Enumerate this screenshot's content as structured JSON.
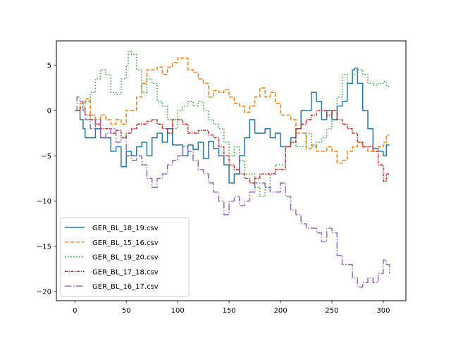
{
  "chart_data": {
    "type": "line",
    "title": "",
    "xlabel": "",
    "ylabel": "",
    "xlim": [
      -18,
      322
    ],
    "ylim": [
      -21,
      7.7
    ],
    "xticks": [
      0,
      50,
      100,
      150,
      200,
      250,
      300
    ],
    "yticks": [
      -20,
      -15,
      -10,
      -5,
      0,
      5
    ],
    "xtick_labels": [
      "0",
      "50",
      "100",
      "150",
      "200",
      "250",
      "300"
    ],
    "ytick_labels": [
      "−20",
      "−15",
      "−10",
      "−5",
      "0",
      "5"
    ],
    "grid": false,
    "legend_position": "lower-left",
    "series": [
      {
        "name": "GER_BL_18_19.csv",
        "color": "#1f77b4",
        "dash": "solid",
        "points": [
          [
            0,
            0
          ],
          [
            5,
            -1
          ],
          [
            8,
            -2
          ],
          [
            10,
            -3
          ],
          [
            15,
            -3
          ],
          [
            20,
            -2
          ],
          [
            25,
            -3
          ],
          [
            30,
            -3
          ],
          [
            35,
            -4.5
          ],
          [
            40,
            -4
          ],
          [
            45,
            -6.2
          ],
          [
            50,
            -4.5
          ],
          [
            55,
            -5
          ],
          [
            60,
            -4
          ],
          [
            65,
            -3.5
          ],
          [
            70,
            -5
          ],
          [
            75,
            -3
          ],
          [
            80,
            -2.5
          ],
          [
            85,
            -3.5
          ],
          [
            90,
            -2
          ],
          [
            95,
            -3.8
          ],
          [
            100,
            -3.8
          ],
          [
            105,
            -5
          ],
          [
            110,
            -3.8
          ],
          [
            115,
            -4.3
          ],
          [
            120,
            -3.5
          ],
          [
            125,
            -5.3
          ],
          [
            130,
            -3.4
          ],
          [
            135,
            -4.2
          ],
          [
            140,
            -5
          ],
          [
            145,
            -6
          ],
          [
            150,
            -8
          ],
          [
            155,
            -7
          ],
          [
            160,
            -5
          ],
          [
            165,
            -3
          ],
          [
            170,
            -1
          ],
          [
            175,
            -2.5
          ],
          [
            180,
            -2.5
          ],
          [
            185,
            -2
          ],
          [
            190,
            -3
          ],
          [
            195,
            -2.5
          ],
          [
            200,
            -4
          ],
          [
            205,
            -4
          ],
          [
            210,
            -3
          ],
          [
            215,
            -2
          ],
          [
            220,
            0
          ],
          [
            225,
            0
          ],
          [
            230,
            2
          ],
          [
            235,
            1
          ],
          [
            240,
            -1
          ],
          [
            245,
            0
          ],
          [
            250,
            -1
          ],
          [
            255,
            0.5
          ],
          [
            260,
            1
          ],
          [
            265,
            3
          ],
          [
            270,
            4.5
          ],
          [
            272,
            4.7
          ],
          [
            275,
            3
          ],
          [
            280,
            0
          ],
          [
            285,
            -2
          ],
          [
            290,
            -4.2
          ],
          [
            295,
            -4.5
          ],
          [
            300,
            -5
          ],
          [
            303,
            -3.8
          ],
          [
            306,
            -3.8
          ]
        ]
      },
      {
        "name": "GER_BL_15_16.csv",
        "color": "#ff7f0e",
        "dash": "dashed",
        "points": [
          [
            0,
            0
          ],
          [
            5,
            0.8
          ],
          [
            10,
            1.3
          ],
          [
            15,
            -0.5
          ],
          [
            20,
            -1.5
          ],
          [
            25,
            -0.5
          ],
          [
            30,
            -1
          ],
          [
            35,
            -1.5
          ],
          [
            40,
            -1
          ],
          [
            45,
            -1.5
          ],
          [
            50,
            0
          ],
          [
            55,
            0
          ],
          [
            60,
            1.5
          ],
          [
            65,
            3
          ],
          [
            70,
            4.5
          ],
          [
            75,
            4.5
          ],
          [
            80,
            4.8
          ],
          [
            85,
            4
          ],
          [
            90,
            4.8
          ],
          [
            95,
            5.3
          ],
          [
            100,
            5.8
          ],
          [
            105,
            5.8
          ],
          [
            110,
            4.5
          ],
          [
            115,
            4.2
          ],
          [
            120,
            3.5
          ],
          [
            125,
            3
          ],
          [
            130,
            1.5
          ],
          [
            135,
            2.2
          ],
          [
            140,
            2
          ],
          [
            145,
            2.3
          ],
          [
            150,
            1.5
          ],
          [
            155,
            0.8
          ],
          [
            160,
            0.5
          ],
          [
            165,
            -0.2
          ],
          [
            170,
            0.5
          ],
          [
            175,
            1.5
          ],
          [
            180,
            2.5
          ],
          [
            185,
            1.5
          ],
          [
            190,
            2
          ],
          [
            195,
            0.8
          ],
          [
            200,
            -0.5
          ],
          [
            205,
            -0.5
          ],
          [
            210,
            -1
          ],
          [
            215,
            -2.5
          ],
          [
            220,
            -2.5
          ],
          [
            225,
            -4.2
          ],
          [
            230,
            -3.8
          ],
          [
            235,
            -4.5
          ],
          [
            240,
            -4.5
          ],
          [
            245,
            -4
          ],
          [
            250,
            -4.5
          ],
          [
            255,
            -5.8
          ],
          [
            260,
            -5.5
          ],
          [
            265,
            -4.5
          ],
          [
            270,
            -4
          ],
          [
            275,
            -3.5
          ],
          [
            280,
            -4
          ],
          [
            285,
            -4.5
          ],
          [
            290,
            -4.5
          ],
          [
            295,
            -4
          ],
          [
            300,
            -3.5
          ],
          [
            303,
            -2.7
          ],
          [
            306,
            -2.7
          ]
        ]
      },
      {
        "name": "GER_BL_19_20.csv",
        "color": "#2ca02c",
        "dash": "dotted",
        "points": [
          [
            0,
            0
          ],
          [
            5,
            0.5
          ],
          [
            10,
            1
          ],
          [
            15,
            2
          ],
          [
            20,
            3.5
          ],
          [
            25,
            4.5
          ],
          [
            30,
            4
          ],
          [
            35,
            2
          ],
          [
            40,
            1.8
          ],
          [
            45,
            3.5
          ],
          [
            50,
            5
          ],
          [
            52,
            6.5
          ],
          [
            55,
            6.2
          ],
          [
            60,
            4.5
          ],
          [
            65,
            2
          ],
          [
            70,
            3.5
          ],
          [
            75,
            3
          ],
          [
            80,
            1
          ],
          [
            85,
            0.5
          ],
          [
            90,
            -1
          ],
          [
            95,
            -2
          ],
          [
            100,
            0
          ],
          [
            105,
            0.5
          ],
          [
            110,
            1
          ],
          [
            115,
            0.5
          ],
          [
            120,
            1
          ],
          [
            125,
            0
          ],
          [
            130,
            -1
          ],
          [
            135,
            -1.5
          ],
          [
            140,
            -2
          ],
          [
            145,
            -3.5
          ],
          [
            150,
            -5
          ],
          [
            155,
            -4
          ],
          [
            160,
            -5.5
          ],
          [
            165,
            -7
          ],
          [
            170,
            -7
          ],
          [
            175,
            -8.5
          ],
          [
            180,
            -9.5
          ],
          [
            185,
            -8.5
          ],
          [
            190,
            -7
          ],
          [
            195,
            -6
          ],
          [
            200,
            -6
          ],
          [
            205,
            -4
          ],
          [
            210,
            -3.5
          ],
          [
            215,
            -4
          ],
          [
            220,
            -4
          ],
          [
            225,
            -2.5
          ],
          [
            230,
            -4
          ],
          [
            235,
            -3.5
          ],
          [
            240,
            -3
          ],
          [
            245,
            -2
          ],
          [
            250,
            0
          ],
          [
            255,
            1.5
          ],
          [
            260,
            4
          ],
          [
            265,
            3
          ],
          [
            270,
            4
          ],
          [
            275,
            4.5
          ],
          [
            280,
            4
          ],
          [
            285,
            3
          ],
          [
            290,
            2.8
          ],
          [
            295,
            3
          ],
          [
            300,
            3.2
          ],
          [
            303,
            2.7
          ],
          [
            306,
            2.7
          ]
        ]
      },
      {
        "name": "GER_BL_17_18.csv",
        "color": "#d62728",
        "dash": "dashdot-dense",
        "points": [
          [
            0,
            0
          ],
          [
            5,
            0.3
          ],
          [
            10,
            -0.5
          ],
          [
            15,
            -1
          ],
          [
            20,
            -1.5
          ],
          [
            25,
            -2
          ],
          [
            30,
            -2
          ],
          [
            35,
            -2.5
          ],
          [
            40,
            -2.2
          ],
          [
            45,
            -3
          ],
          [
            50,
            -2.5
          ],
          [
            55,
            -2
          ],
          [
            60,
            -1.5
          ],
          [
            65,
            -1.5
          ],
          [
            70,
            -1.2
          ],
          [
            75,
            -1
          ],
          [
            80,
            -1.5
          ],
          [
            85,
            -2
          ],
          [
            90,
            -2.5
          ],
          [
            95,
            -1
          ],
          [
            100,
            -1
          ],
          [
            105,
            -1.5
          ],
          [
            110,
            -2.5
          ],
          [
            115,
            -2.5
          ],
          [
            120,
            -2.2
          ],
          [
            125,
            -2.2
          ],
          [
            130,
            -2.7
          ],
          [
            135,
            -3
          ],
          [
            140,
            -4
          ],
          [
            145,
            -5
          ],
          [
            150,
            -6
          ],
          [
            155,
            -6.5
          ],
          [
            160,
            -7
          ],
          [
            165,
            -7.5
          ],
          [
            170,
            -8
          ],
          [
            175,
            -7.5
          ],
          [
            180,
            -7
          ],
          [
            185,
            -7
          ],
          [
            190,
            -7
          ],
          [
            195,
            -6.5
          ],
          [
            200,
            -6.5
          ],
          [
            205,
            -4
          ],
          [
            210,
            -3.5
          ],
          [
            215,
            -2
          ],
          [
            220,
            -1.5
          ],
          [
            225,
            -1
          ],
          [
            230,
            -0.5
          ],
          [
            235,
            0
          ],
          [
            240,
            0
          ],
          [
            245,
            -0.5
          ],
          [
            250,
            0
          ],
          [
            255,
            -1
          ],
          [
            260,
            -1.5
          ],
          [
            265,
            -2
          ],
          [
            270,
            -2.5
          ],
          [
            275,
            -3.5
          ],
          [
            280,
            -4
          ],
          [
            285,
            -4
          ],
          [
            290,
            -4.5
          ],
          [
            295,
            -6
          ],
          [
            300,
            -7.8
          ],
          [
            303,
            -7
          ],
          [
            306,
            -7
          ]
        ]
      },
      {
        "name": "GER_BL_16_17.csv",
        "color": "#9467bd",
        "dash": "dashdot",
        "points": [
          [
            0,
            0
          ],
          [
            2,
            1.5
          ],
          [
            5,
            1
          ],
          [
            8,
            0
          ],
          [
            10,
            -1
          ],
          [
            15,
            -2
          ],
          [
            20,
            -1
          ],
          [
            25,
            -3
          ],
          [
            30,
            -2.5
          ],
          [
            35,
            -2
          ],
          [
            40,
            -3.5
          ],
          [
            45,
            -3
          ],
          [
            50,
            -5
          ],
          [
            55,
            -5.5
          ],
          [
            60,
            -5
          ],
          [
            65,
            -6
          ],
          [
            70,
            -7.5
          ],
          [
            75,
            -8.5
          ],
          [
            80,
            -7.5
          ],
          [
            85,
            -7
          ],
          [
            90,
            -6
          ],
          [
            95,
            -5.5
          ],
          [
            100,
            -5
          ],
          [
            105,
            -4
          ],
          [
            110,
            -4.5
          ],
          [
            115,
            -5.5
          ],
          [
            120,
            -6.5
          ],
          [
            125,
            -7
          ],
          [
            130,
            -8
          ],
          [
            135,
            -9
          ],
          [
            140,
            -10
          ],
          [
            145,
            -11.5
          ],
          [
            150,
            -10
          ],
          [
            155,
            -9.5
          ],
          [
            160,
            -10.5
          ],
          [
            165,
            -10
          ],
          [
            170,
            -9
          ],
          [
            175,
            -8
          ],
          [
            180,
            -8
          ],
          [
            185,
            -8.5
          ],
          [
            190,
            -9
          ],
          [
            195,
            -9
          ],
          [
            200,
            -8
          ],
          [
            205,
            -9.5
          ],
          [
            210,
            -11
          ],
          [
            215,
            -11.5
          ],
          [
            220,
            -12.5
          ],
          [
            225,
            -13
          ],
          [
            230,
            -13
          ],
          [
            235,
            -13.5
          ],
          [
            240,
            -14.5
          ],
          [
            245,
            -13
          ],
          [
            250,
            -13.5
          ],
          [
            255,
            -16
          ],
          [
            260,
            -17
          ],
          [
            265,
            -17
          ],
          [
            270,
            -18.5
          ],
          [
            275,
            -19.5
          ],
          [
            280,
            -19
          ],
          [
            285,
            -18.5
          ],
          [
            290,
            -19
          ],
          [
            295,
            -18
          ],
          [
            300,
            -16.5
          ],
          [
            303,
            -17
          ],
          [
            306,
            -18
          ]
        ]
      }
    ]
  }
}
